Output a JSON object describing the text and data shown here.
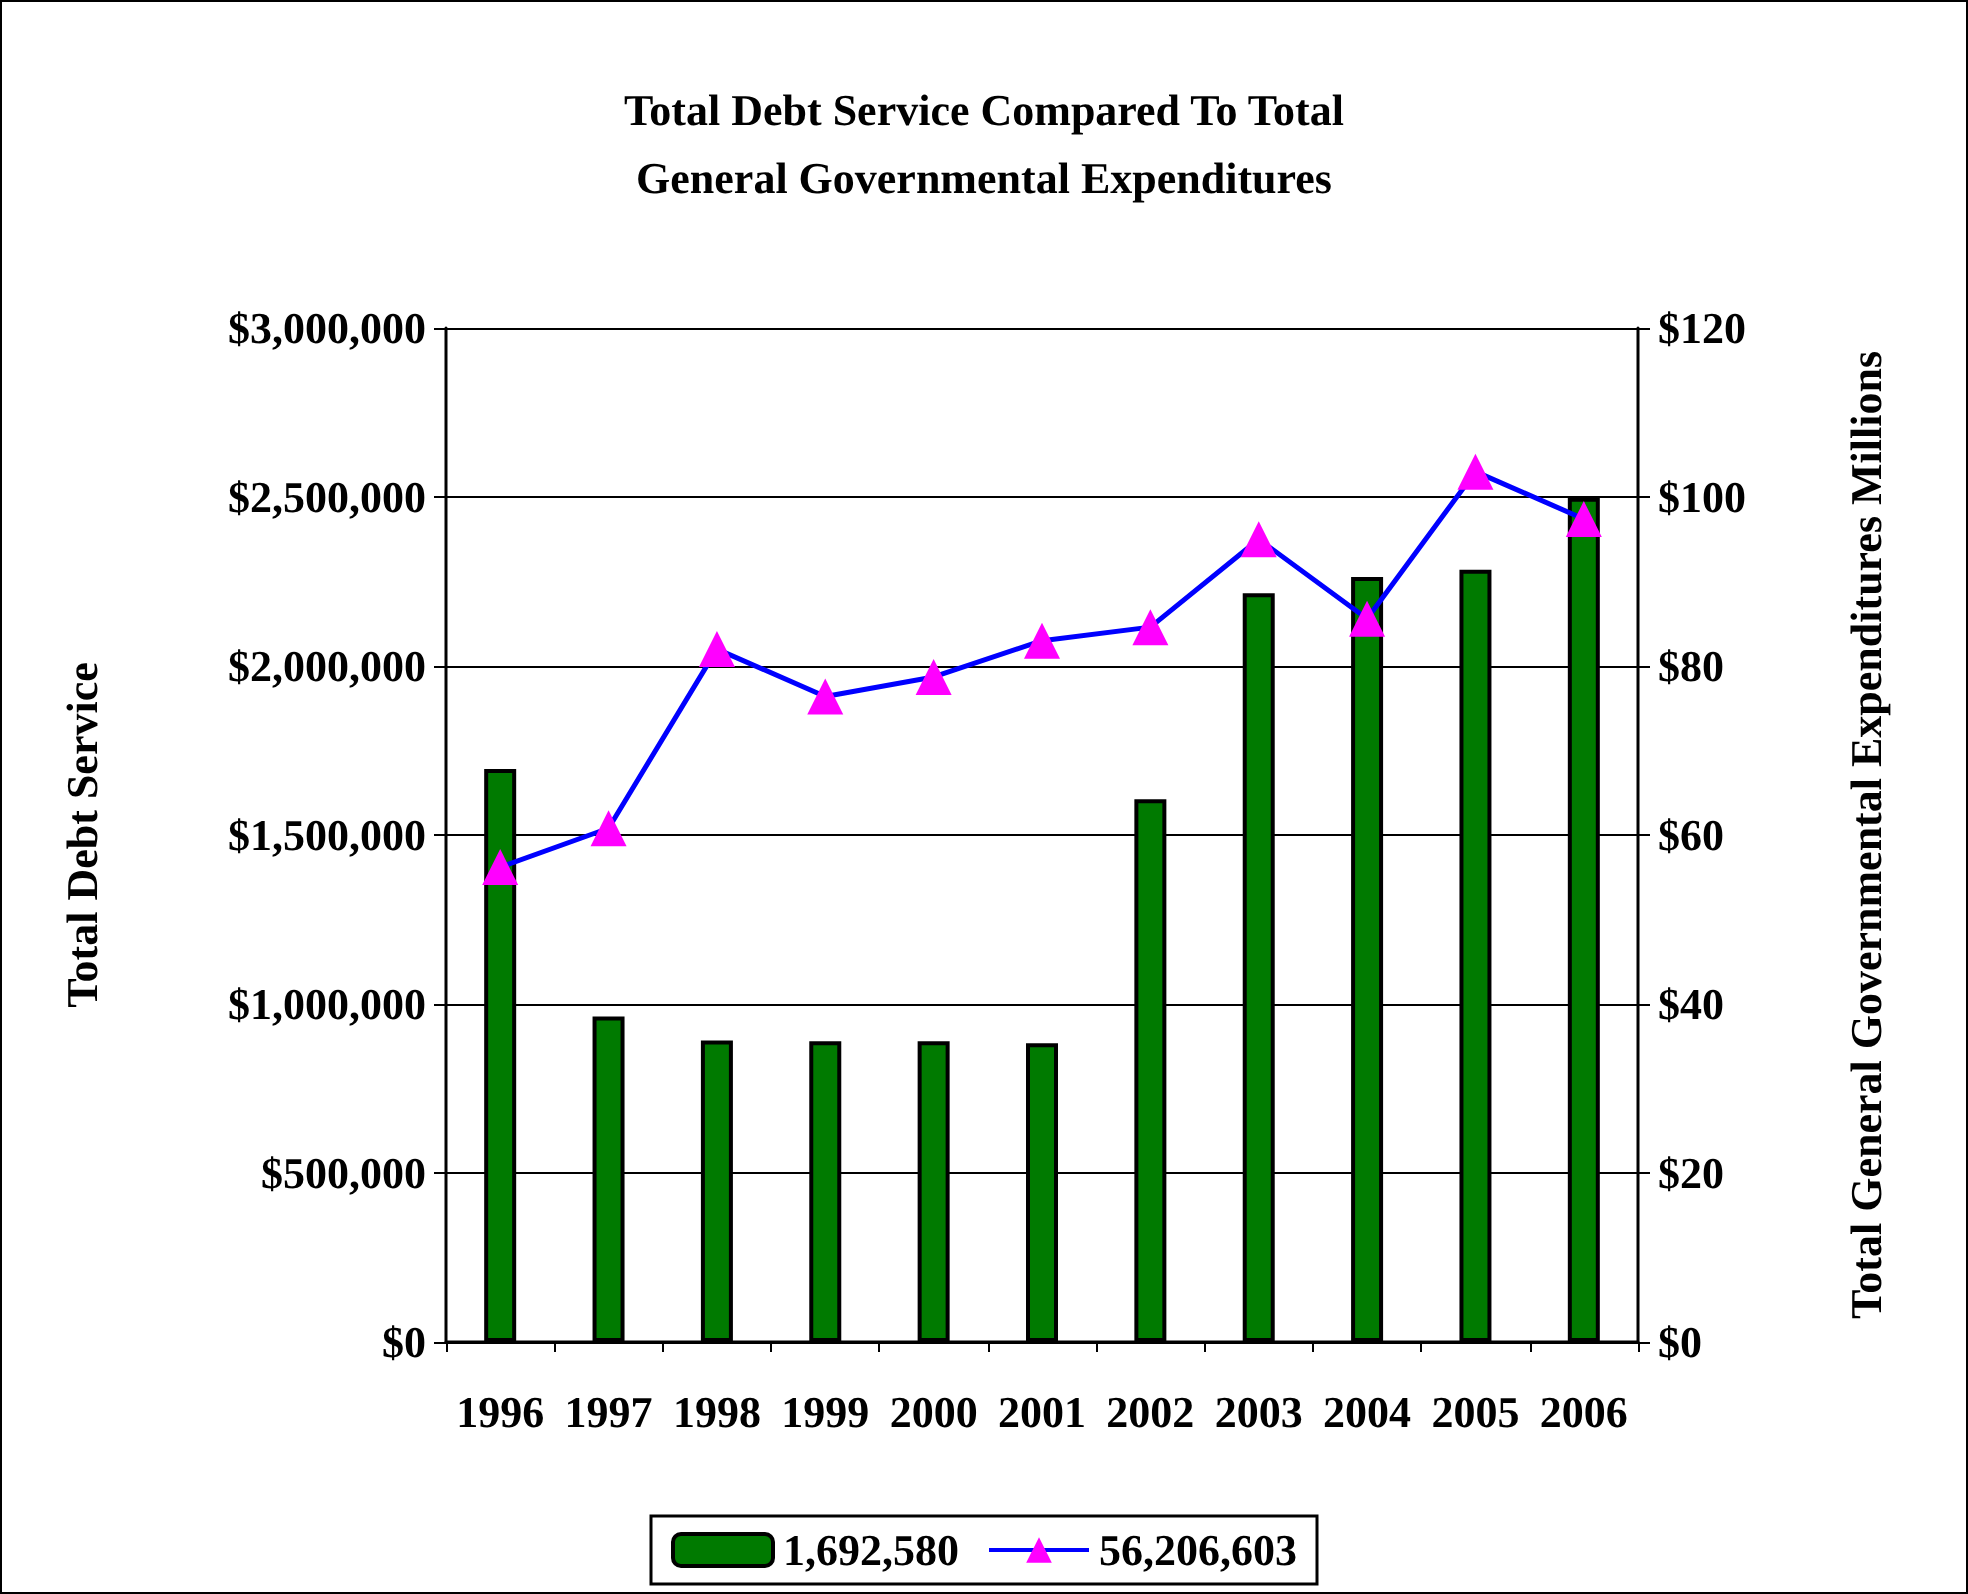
{
  "chart_data": {
    "type": "bar",
    "title": "Total Debt Service Compared To Total\nGeneral Governmental Expenditures",
    "ylabel": "Total Debt Service",
    "y2label": "Total General Governmental Expenditures Millions",
    "categories": [
      "1996",
      "1997",
      "1998",
      "1999",
      "2000",
      "2001",
      "2002",
      "2003",
      "2004",
      "2005",
      "2006"
    ],
    "series": [
      {
        "name": "1,692,580",
        "color": "#007a00",
        "values": [
          1695000,
          963000,
          892000,
          890000,
          890000,
          884000,
          1606000,
          2215000,
          2263000,
          2285000,
          2498000
        ]
      },
      {
        "name": "56,206,603",
        "type": "line",
        "axis": "y2",
        "color": "#0000ff",
        "colors": [
          "#ff00ff",
          "#ff00ff",
          "#ff00ff",
          "#ff00ff",
          "#ff00ff",
          "#ff00ff",
          "#ff00ff",
          "#ff00ff",
          "#ff00ff",
          "#ff00ff",
          "#ff00ff"
        ],
        "values": [
          56.2,
          60.8,
          82.0,
          76.4,
          78.7,
          83.0,
          84.6,
          95.0,
          85.6,
          103.0,
          97.4
        ]
      }
    ],
    "ylim": [
      0,
      3000000
    ],
    "yticks": [
      {
        "value": 0,
        "label": "$0"
      },
      {
        "value": 500000,
        "label": "$500,000"
      },
      {
        "value": 1000000,
        "label": "$1,000,000"
      },
      {
        "value": 1500000,
        "label": "$1,500,000"
      },
      {
        "value": 2000000,
        "label": "$2,000,000"
      },
      {
        "value": 2500000,
        "label": "$2,500,000"
      },
      {
        "value": 3000000,
        "label": "$3,000,000"
      }
    ],
    "y2lim": [
      0,
      120
    ],
    "y2ticks": [
      {
        "value": 0,
        "label": "$0"
      },
      {
        "value": 20,
        "label": "$20"
      },
      {
        "value": 40,
        "label": "$40"
      },
      {
        "value": 60,
        "label": "$60"
      },
      {
        "value": 80,
        "label": "$80"
      },
      {
        "value": 100,
        "label": "$100"
      },
      {
        "value": 120,
        "label": "$120"
      }
    ],
    "grid": "y",
    "legend": "bottom",
    "marker": "triangle",
    "line_style": "solid"
  }
}
